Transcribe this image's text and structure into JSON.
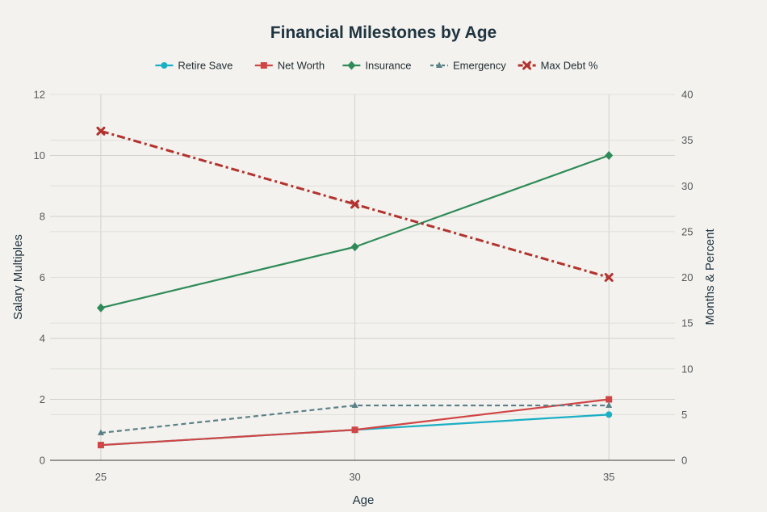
{
  "chart_data": {
    "type": "line",
    "title": "Financial Milestones by Age",
    "xlabel": "Age",
    "ylabel_left": "Salary Multiples",
    "ylabel_right": "Months & Percent",
    "categories": [
      25,
      30,
      35
    ],
    "x_ticks": [
      "25",
      "30",
      "35"
    ],
    "ylim_left": [
      0,
      12
    ],
    "ylim_right": [
      0,
      40
    ],
    "y_ticks_left": [
      "0",
      "2",
      "4",
      "6",
      "8",
      "10",
      "12"
    ],
    "y_ticks_right": [
      "0",
      "5",
      "10",
      "15",
      "20",
      "25",
      "30",
      "35",
      "40"
    ],
    "grid": true,
    "legend_position": "top",
    "series": [
      {
        "name": "Retire Save",
        "axis": "left",
        "values": [
          0.5,
          1,
          1.5
        ],
        "color": "#1aafc4",
        "marker": "circle",
        "dash": "solid"
      },
      {
        "name": "Net Worth",
        "axis": "left",
        "values": [
          0.5,
          1,
          2
        ],
        "color": "#d04545",
        "marker": "square",
        "dash": "solid"
      },
      {
        "name": "Insurance",
        "axis": "left",
        "values": [
          5,
          7,
          10
        ],
        "color": "#2e8b57",
        "marker": "diamond",
        "dash": "solid"
      },
      {
        "name": "Emergency",
        "axis": "right",
        "values": [
          3,
          6,
          6
        ],
        "color": "#5a8088",
        "marker": "triangle",
        "dash": "dash"
      },
      {
        "name": "Max Debt %",
        "axis": "right",
        "values": [
          36,
          28,
          20
        ],
        "color": "#b3322e",
        "marker": "x",
        "dash": "dashdot"
      }
    ]
  }
}
